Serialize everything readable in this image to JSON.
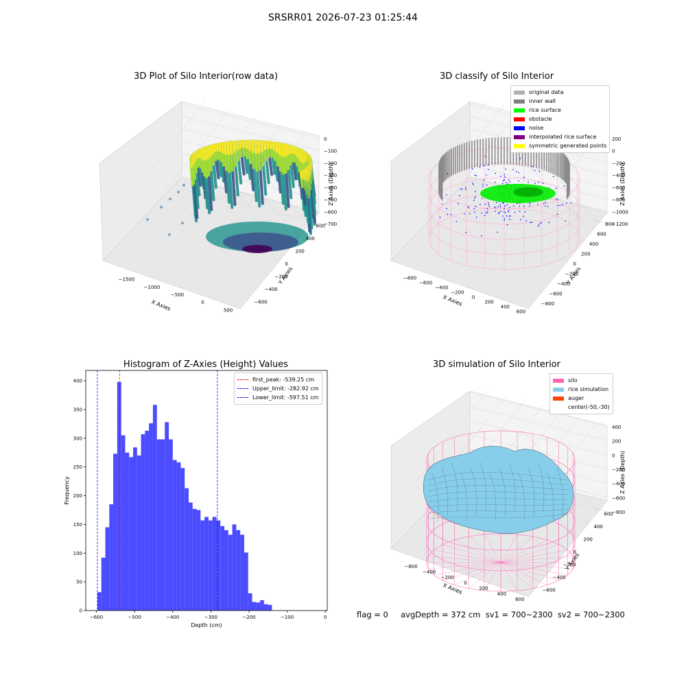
{
  "page": {
    "suptitle": "SRSRR01 2026-07-23 01:25:44"
  },
  "panels": {
    "raw": {
      "title": "3D Plot of Silo Interior(row data)",
      "xlabel": "X Axies",
      "ylabel": "Y Axies",
      "zlabel": "Z Axies (Depth)",
      "xticks": [
        "−1500",
        "−1000",
        "−500",
        "0",
        "500"
      ],
      "yticks": [
        "600",
        "400",
        "200",
        "0",
        "−200",
        "−400",
        "−600"
      ],
      "zticks": [
        "0",
        "−100",
        "−200",
        "−300",
        "−400",
        "−500",
        "−600",
        "−700"
      ]
    },
    "classify": {
      "title": "3D classify of Silo Interior",
      "xlabel": "X Axies",
      "ylabel": "Y Axies",
      "zlabel": "Z Axies (Depth)",
      "xticks": [
        "−800",
        "−600",
        "−400",
        "−200",
        "0",
        "200",
        "400",
        "600"
      ],
      "yticks": [
        "800",
        "600",
        "400",
        "200",
        "0",
        "−200",
        "−400",
        "−600",
        "−800"
      ],
      "zticks": [
        "200",
        "0",
        "−200",
        "−400",
        "−600",
        "−800",
        "−1000",
        "−1200"
      ],
      "legend": [
        {
          "label": "original data",
          "color": "#b0b0b0"
        },
        {
          "label": "inner wall",
          "color": "#808080"
        },
        {
          "label": "rice surface",
          "color": "#00ff00"
        },
        {
          "label": "obstacle",
          "color": "#ff0000"
        },
        {
          "label": "noise",
          "color": "#0000ff"
        },
        {
          "label": "interpolated rice surface",
          "color": "#800080"
        },
        {
          "label": "symmetric generated points",
          "color": "#ffff00"
        }
      ]
    },
    "simulation": {
      "title": "3D simulation of Silo Interior",
      "xlabel": "X Axies",
      "ylabel": "Y Axies",
      "zlabel": "Z Axies (Depth)",
      "xticks": [
        "−600",
        "−400",
        "−200",
        "0",
        "200",
        "400",
        "600"
      ],
      "yticks": [
        "600",
        "400",
        "200",
        "0",
        "−200",
        "−400",
        "−600"
      ],
      "zticks": [
        "400",
        "200",
        "0",
        "−200",
        "−400",
        "−600",
        "−800"
      ],
      "legend": [
        {
          "label": "silo",
          "color": "#ff69b4"
        },
        {
          "label": "rice simulation",
          "color": "#87ceeb"
        },
        {
          "label": "auger",
          "color": "#ff4500"
        },
        {
          "label": "center(-50,-30)",
          "color": ""
        }
      ]
    }
  },
  "footer": {
    "text": "flag = 0     avgDepth = 372 cm  sv1 = 700~2300  sv2 = 700~2300"
  },
  "chart_data": [
    {
      "type": "bar",
      "title": "Histogram of Z-Axies (Height) Values",
      "xlabel": "Depth (cm)",
      "ylabel": "Frequency",
      "xlim": [
        -628,
        5
      ],
      "ylim": [
        0,
        418
      ],
      "xticks": [
        -600,
        -500,
        -400,
        -300,
        -200,
        -100,
        0
      ],
      "yticks": [
        0,
        50,
        100,
        150,
        200,
        250,
        300,
        350,
        400
      ],
      "bin_start": -597.5,
      "bin_width": 10.4,
      "values": [
        32,
        92,
        145,
        185,
        273,
        398,
        305,
        275,
        267,
        284,
        270,
        307,
        313,
        326,
        358,
        298,
        298,
        328,
        298,
        262,
        258,
        248,
        213,
        188,
        177,
        175,
        157,
        163,
        157,
        163,
        157,
        147,
        140,
        132,
        150,
        140,
        132,
        101,
        30,
        15,
        14,
        18,
        11,
        10
      ],
      "color": "#4b4bff",
      "vlines": [
        {
          "value": -539.25,
          "label": "first_peak: -539.25 cm",
          "color": "#ff0000"
        },
        {
          "value": -282.92,
          "label": "Upper_limit: -282.92 cm",
          "color": "#0000ff"
        },
        {
          "value": -597.51,
          "label": "Lower_limit: -597.51 cm",
          "color": "#0000ff"
        }
      ],
      "legend_position": "top-right"
    }
  ]
}
